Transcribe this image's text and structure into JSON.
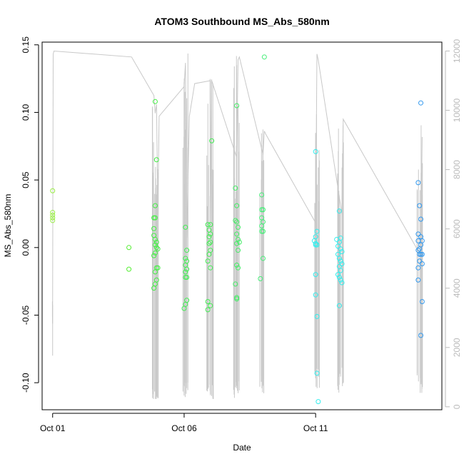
{
  "chart_data": {
    "type": "scatter",
    "title": "ATOM3 Southbound MS_Abs_580nm",
    "xlabel": "Date",
    "ylabel": "MS_Abs_580nm",
    "y2label": "",
    "x_ticks": [
      {
        "day": 1,
        "label": "Oct 01"
      },
      {
        "day": 6,
        "label": "Oct 06"
      },
      {
        "day": 11,
        "label": "Oct 11"
      }
    ],
    "xlim_days": [
      0.6,
      15.8
    ],
    "ylim": [
      -0.12,
      0.152
    ],
    "y_ticks": [
      -0.1,
      -0.05,
      0.0,
      0.05,
      0.1,
      0.15
    ],
    "y_tick_labels": [
      "-0.10",
      "-0.05",
      "0.00",
      "0.05",
      "0.10",
      "0.15"
    ],
    "y2lim": [
      -100,
      12300
    ],
    "y2_ticks": [
      0,
      2000,
      4000,
      6000,
      8000,
      10000,
      12000
    ],
    "y2_tick_labels": [
      "0",
      "2000",
      "4000",
      "6000",
      "8000",
      "10000",
      "12000"
    ],
    "grid": false,
    "series": [
      {
        "color": "#99ee44",
        "points": [
          [
            1.0,
            0.042
          ],
          [
            1.0,
            0.026
          ],
          [
            1.0,
            0.024
          ],
          [
            1.0,
            0.022
          ],
          [
            1.0,
            0.02
          ]
        ]
      },
      {
        "color": "#55ee33",
        "points": [
          [
            3.9,
            -0.0
          ],
          [
            3.9,
            -0.016
          ]
        ]
      },
      {
        "color": "#44ee44",
        "points": [
          [
            4.9,
            0.108
          ],
          [
            4.95,
            0.065
          ],
          [
            4.9,
            0.031
          ],
          [
            4.85,
            0.022
          ],
          [
            4.9,
            0.022
          ],
          [
            4.85,
            0.014
          ],
          [
            4.85,
            0.009
          ],
          [
            4.9,
            0.006
          ],
          [
            4.95,
            0.004
          ],
          [
            4.9,
            0.002
          ],
          [
            4.95,
            0.0
          ],
          [
            5.0,
            -0.001
          ],
          [
            4.9,
            -0.004
          ],
          [
            4.85,
            -0.006
          ],
          [
            4.95,
            -0.015
          ],
          [
            5.0,
            -0.015
          ],
          [
            4.9,
            -0.018
          ],
          [
            4.95,
            -0.024
          ],
          [
            4.9,
            -0.027
          ],
          [
            4.85,
            -0.03
          ]
        ]
      },
      {
        "color": "#44ee55",
        "points": [
          [
            6.05,
            0.015
          ],
          [
            6.1,
            -0.002
          ],
          [
            6.05,
            -0.008
          ],
          [
            6.1,
            -0.01
          ],
          [
            6.05,
            -0.013
          ],
          [
            6.1,
            -0.016
          ],
          [
            6.05,
            -0.018
          ],
          [
            6.1,
            -0.022
          ],
          [
            6.05,
            -0.022
          ],
          [
            6.1,
            -0.039
          ],
          [
            6.05,
            -0.042
          ],
          [
            6.0,
            -0.045
          ]
        ]
      },
      {
        "color": "#44ee55",
        "points": [
          [
            7.05,
            0.079
          ],
          [
            6.9,
            0.017
          ],
          [
            7.0,
            0.017
          ],
          [
            6.95,
            0.013
          ],
          [
            7.0,
            0.01
          ],
          [
            6.95,
            0.008
          ],
          [
            7.0,
            0.004
          ],
          [
            6.95,
            0.003
          ],
          [
            7.0,
            -0.002
          ],
          [
            6.95,
            -0.005
          ],
          [
            6.9,
            -0.01
          ],
          [
            7.0,
            -0.015
          ],
          [
            6.9,
            -0.04
          ],
          [
            7.0,
            -0.043
          ],
          [
            6.9,
            -0.046
          ]
        ]
      },
      {
        "color": "#44ee66",
        "points": [
          [
            8.0,
            0.105
          ],
          [
            7.95,
            0.044
          ],
          [
            8.0,
            0.031
          ],
          [
            7.95,
            0.02
          ],
          [
            8.0,
            0.019
          ],
          [
            8.05,
            0.015
          ],
          [
            8.0,
            0.01
          ],
          [
            8.05,
            0.006
          ],
          [
            8.1,
            0.004
          ],
          [
            8.0,
            0.003
          ],
          [
            8.05,
            -0.002
          ],
          [
            8.0,
            -0.013
          ],
          [
            8.05,
            -0.015
          ],
          [
            7.95,
            -0.027
          ],
          [
            8.0,
            -0.037
          ],
          [
            8.0,
            -0.038
          ]
        ]
      },
      {
        "color": "#44ee77",
        "points": [
          [
            9.05,
            0.141
          ],
          [
            8.95,
            0.039
          ],
          [
            8.95,
            0.028
          ],
          [
            9.0,
            0.028
          ],
          [
            8.95,
            0.022
          ],
          [
            9.0,
            0.019
          ],
          [
            8.95,
            0.016
          ],
          [
            9.0,
            0.012
          ],
          [
            8.95,
            0.012
          ],
          [
            9.0,
            -0.008
          ],
          [
            8.9,
            -0.023
          ]
        ]
      },
      {
        "color": "#33eeee",
        "points": [
          [
            11.0,
            0.071
          ],
          [
            11.05,
            0.012
          ],
          [
            11.0,
            0.008
          ],
          [
            10.95,
            0.005
          ],
          [
            11.0,
            0.003
          ],
          [
            11.05,
            0.002
          ],
          [
            11.0,
            0.002
          ],
          [
            11.0,
            -0.02
          ],
          [
            11.0,
            -0.035
          ],
          [
            11.05,
            -0.051
          ],
          [
            11.05,
            -0.093
          ],
          [
            11.1,
            -0.114
          ]
        ]
      },
      {
        "color": "#33eeee",
        "points": [
          [
            11.9,
            0.027
          ],
          [
            11.8,
            0.006
          ],
          [
            11.95,
            0.007
          ],
          [
            11.9,
            0.004
          ],
          [
            11.85,
            0.001
          ],
          [
            11.95,
            -0.001
          ],
          [
            12.0,
            -0.003
          ],
          [
            11.85,
            -0.005
          ],
          [
            11.9,
            -0.008
          ],
          [
            11.95,
            -0.01
          ],
          [
            12.0,
            -0.012
          ],
          [
            11.9,
            -0.014
          ],
          [
            11.95,
            -0.017
          ],
          [
            11.85,
            -0.02
          ],
          [
            11.9,
            -0.022
          ],
          [
            11.95,
            -0.024
          ],
          [
            12.0,
            -0.026
          ],
          [
            11.9,
            -0.043
          ]
        ]
      },
      {
        "color": "#3399ee",
        "points": [
          [
            15.0,
            0.107
          ],
          [
            14.9,
            0.048
          ],
          [
            14.95,
            0.031
          ],
          [
            15.0,
            0.021
          ],
          [
            14.9,
            0.01
          ],
          [
            15.0,
            0.008
          ],
          [
            15.05,
            0.005
          ],
          [
            14.9,
            0.005
          ],
          [
            15.0,
            0.002
          ],
          [
            14.95,
            -0.001
          ],
          [
            14.9,
            -0.002
          ],
          [
            14.95,
            -0.005
          ],
          [
            15.0,
            -0.005
          ],
          [
            15.05,
            -0.005
          ],
          [
            14.95,
            -0.01
          ],
          [
            15.05,
            -0.012
          ],
          [
            14.9,
            -0.015
          ],
          [
            14.9,
            -0.024
          ],
          [
            15.05,
            -0.04
          ],
          [
            15.0,
            -0.065
          ]
        ]
      }
    ],
    "line_series": {
      "color": "#c8c8c8",
      "axis": "right",
      "points": [
        [
          1.0,
          2800
        ],
        [
          1.0,
          3200
        ],
        [
          1.02,
          11900
        ],
        [
          1.05,
          12000
        ],
        [
          4.0,
          11800
        ],
        [
          4.85,
          10500
        ],
        [
          4.9,
          9900
        ],
        [
          4.95,
          10200
        ],
        [
          5.0,
          6500
        ],
        [
          5.05,
          9800
        ],
        [
          6.0,
          10800
        ],
        [
          6.05,
          11600
        ],
        [
          6.1,
          5700
        ],
        [
          6.2,
          9800
        ],
        [
          6.4,
          10900
        ],
        [
          7.0,
          11000
        ],
        [
          7.0,
          5800
        ],
        [
          7.05,
          11000
        ],
        [
          8.0,
          8400
        ],
        [
          8.05,
          11700
        ],
        [
          8.1,
          11800
        ],
        [
          9.0,
          8500
        ],
        [
          9.05,
          9300
        ],
        [
          9.1,
          9200
        ],
        [
          11.0,
          6200
        ],
        [
          11.05,
          11900
        ],
        [
          11.1,
          11700
        ],
        [
          12.0,
          6500
        ],
        [
          12.05,
          9700
        ],
        [
          15.0,
          5100
        ],
        [
          15.05,
          9100
        ]
      ]
    },
    "spikes": [
      {
        "center": 1.0,
        "count": 3,
        "spread": 0.01,
        "low": 2800,
        "high": 3600
      },
      {
        "center": 4.9,
        "count": 14,
        "spread": 0.12,
        "low": 400,
        "high": 10400
      },
      {
        "center": 6.05,
        "count": 12,
        "spread": 0.1,
        "low": 600,
        "high": 12300
      },
      {
        "center": 7.0,
        "count": 14,
        "spread": 0.14,
        "low": 500,
        "high": 11700
      },
      {
        "center": 8.0,
        "count": 14,
        "spread": 0.12,
        "low": 600,
        "high": 12000
      },
      {
        "center": 8.95,
        "count": 10,
        "spread": 0.08,
        "low": 700,
        "high": 9700
      },
      {
        "center": 11.05,
        "count": 12,
        "spread": 0.1,
        "low": 1200,
        "high": 10300
      },
      {
        "center": 11.95,
        "count": 12,
        "spread": 0.12,
        "low": 900,
        "high": 9700
      },
      {
        "center": 14.95,
        "count": 10,
        "spread": 0.12,
        "low": 800,
        "high": 9800
      }
    ]
  }
}
